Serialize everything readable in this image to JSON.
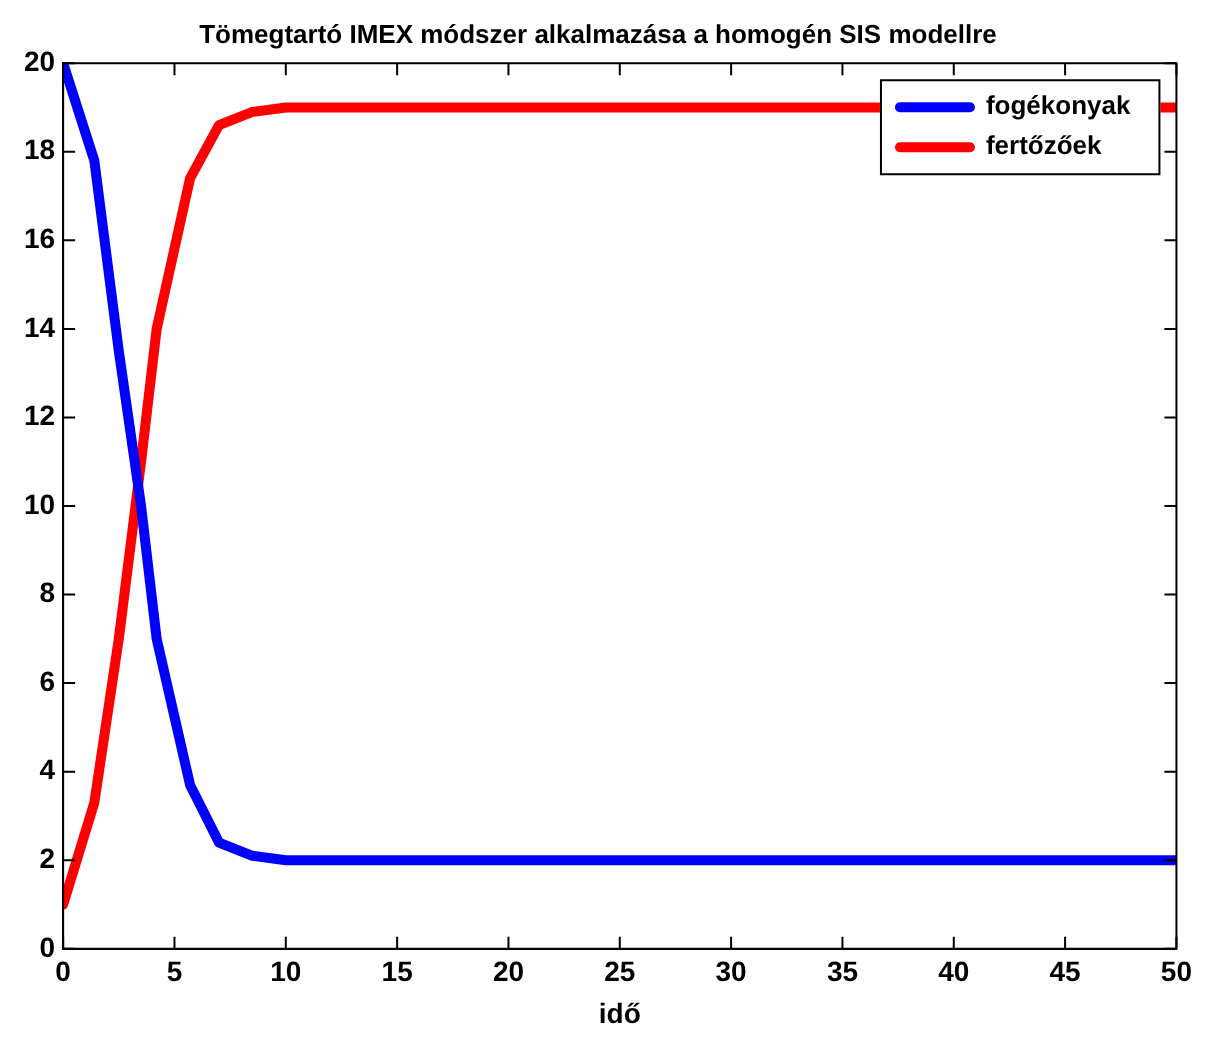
{
  "chart_data": {
    "type": "line",
    "title": "Tömegtartó IMEX módszer alkalmazása a homogén SIS modellre",
    "xlabel": "idő",
    "x": [
      0,
      1.4,
      2.5,
      3.5,
      4.2,
      5.7,
      7,
      8.5,
      10,
      12,
      20,
      30,
      50
    ],
    "series": [
      {
        "name": "fogékonyak",
        "color": "#0000ff",
        "values": [
          20,
          17.8,
          13.5,
          10,
          7,
          3.7,
          2.4,
          2.1,
          2.0,
          2,
          2,
          2,
          2
        ]
      },
      {
        "name": "fertőzőek",
        "color": "#ff0000",
        "values": [
          1,
          3.3,
          7,
          11,
          14,
          17.4,
          18.6,
          18.9,
          19,
          19,
          19,
          19,
          19
        ]
      }
    ],
    "xlim": [
      0,
      50
    ],
    "xticks": [
      0,
      5,
      10,
      15,
      20,
      25,
      30,
      35,
      40,
      45,
      50
    ],
    "ylim": [
      0,
      20
    ],
    "yticks": [
      0,
      2,
      4,
      6,
      8,
      10,
      12,
      14,
      16,
      18,
      20
    ],
    "grid": false,
    "legend": "top right",
    "line_style": "solid",
    "marker": "none"
  }
}
